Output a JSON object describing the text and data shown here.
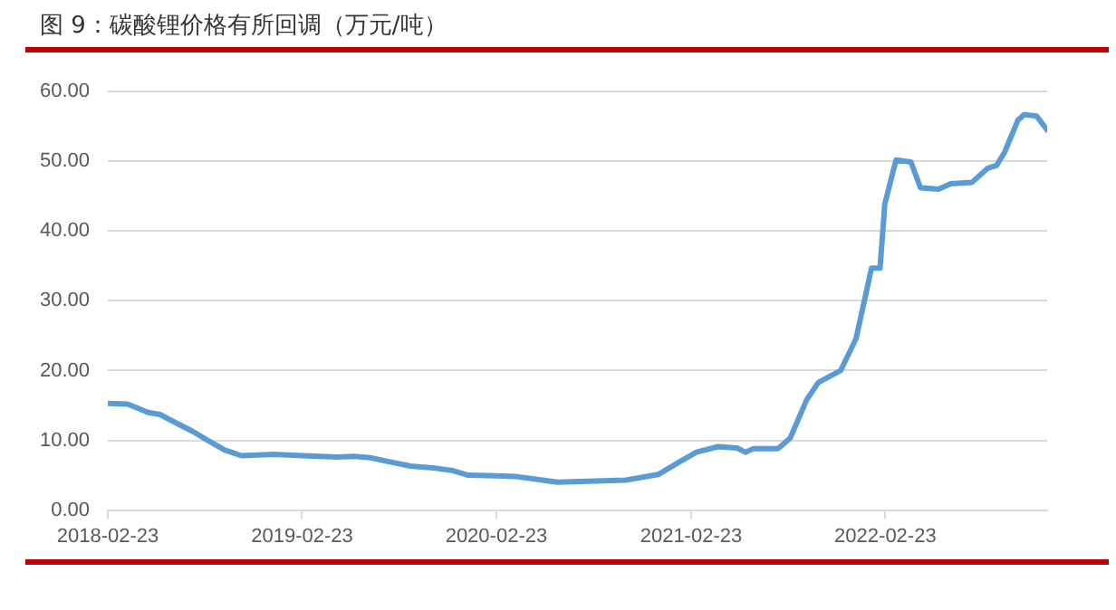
{
  "chart_data": {
    "type": "line",
    "title": "图 9：碳酸锂价格有所回调（万元/吨）",
    "x": [
      "2018-02-23",
      "2018-04-01",
      "2018-05-10",
      "2018-06-01",
      "2018-07-01",
      "2018-08-01",
      "2018-09-01",
      "2018-10-01",
      "2018-11-01",
      "2019-01-01",
      "2019-02-23",
      "2019-05-01",
      "2019-06-01",
      "2019-07-01",
      "2019-08-01",
      "2019-09-15",
      "2019-11-01",
      "2019-12-01",
      "2020-01-01",
      "2020-02-23",
      "2020-04-01",
      "2020-05-01",
      "2020-06-17",
      "2020-10-23",
      "2020-12-23",
      "2021-02-01",
      "2021-03-05",
      "2021-04-15",
      "2021-05-20",
      "2021-06-05",
      "2021-06-20",
      "2021-08-05",
      "2021-08-28",
      "2021-09-28",
      "2021-10-20",
      "2021-12-01",
      "2021-12-30",
      "2022-01-28",
      "2022-02-13",
      "2022-02-22",
      "2022-03-15",
      "2022-04-12",
      "2022-04-30",
      "2022-06-03",
      "2022-06-26",
      "2022-08-05",
      "2022-09-03",
      "2022-09-20",
      "2022-10-05",
      "2022-10-30",
      "2022-11-11",
      "2022-12-04",
      "2022-12-24"
    ],
    "series": [
      {
        "color": "#5b9bd5",
        "values": [
          15.3,
          15.2,
          14,
          13.7,
          12.5,
          11.3,
          9.9,
          8.6,
          7.8,
          8.0,
          7.8,
          7.6,
          7.7,
          7.5,
          7.0,
          6.3,
          6.0,
          5.7,
          5.0,
          4.9,
          4.8,
          4.5,
          4.0,
          4.3,
          5.1,
          6.9,
          8.3,
          9.1,
          8.9,
          8.3,
          8.8,
          8.8,
          10.3,
          15.8,
          18.3,
          20,
          24.6,
          34.7,
          34.7,
          43.9,
          50.2,
          49.9,
          46.2,
          46.0,
          46.8,
          47.0,
          49.0,
          49.4,
          51.3,
          55.9,
          56.7,
          56.5,
          54.5
        ]
      }
    ],
    "xlim": [
      "2018-02-23",
      "2022-12-24"
    ],
    "xticks": [
      "2018-02-23",
      "2019-02-23",
      "2020-02-23",
      "2021-02-23",
      "2022-02-23"
    ],
    "ylim": [
      0,
      60
    ],
    "yticks": [
      {
        "value": 0,
        "label": "0.00"
      },
      {
        "value": 10,
        "label": "10.00"
      },
      {
        "value": 20,
        "label": "20.00"
      },
      {
        "value": 30,
        "label": "30.00"
      },
      {
        "value": 40,
        "label": "40.00"
      },
      {
        "value": 50,
        "label": "50.00"
      },
      {
        "value": 60,
        "label": "60.00"
      }
    ],
    "grid": "y",
    "legend": false,
    "marker": "none",
    "line_style": "solid"
  }
}
